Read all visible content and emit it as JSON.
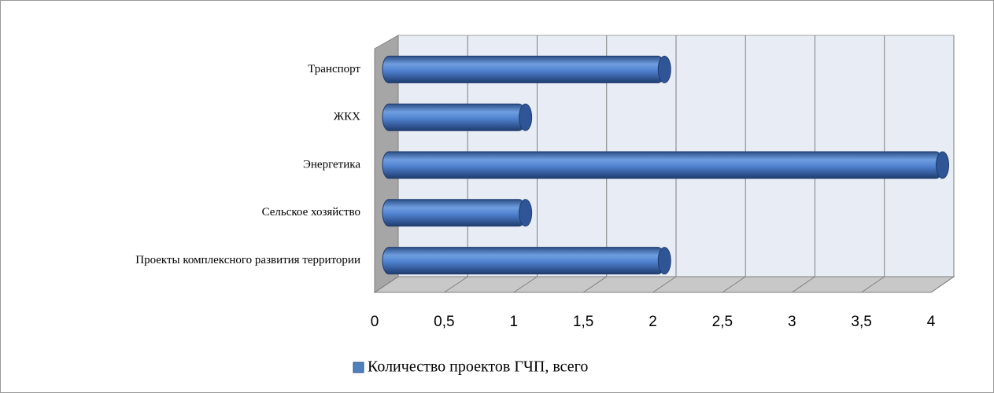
{
  "chart_data": {
    "type": "bar",
    "orientation": "horizontal",
    "categories": [
      "Транспорт",
      "ЖКХ",
      "Энергетика",
      "Сельское хозяйство",
      "Проекты комплексного развития территории"
    ],
    "series": [
      {
        "name": "Количество проектов ГЧП, всего",
        "color": "#4f81bd",
        "values": [
          2,
          1,
          4,
          1,
          2
        ]
      }
    ],
    "xlim": [
      0,
      4
    ],
    "xticks": [
      0,
      {
        "value": 0.5,
        "label": "0,5"
      },
      1,
      {
        "value": 1.5,
        "label": "1,5"
      },
      2,
      {
        "value": 2.5,
        "label": "2,5"
      },
      3,
      {
        "value": 3.5,
        "label": "3,5"
      },
      4
    ],
    "grid": true,
    "legend": "bottom"
  }
}
